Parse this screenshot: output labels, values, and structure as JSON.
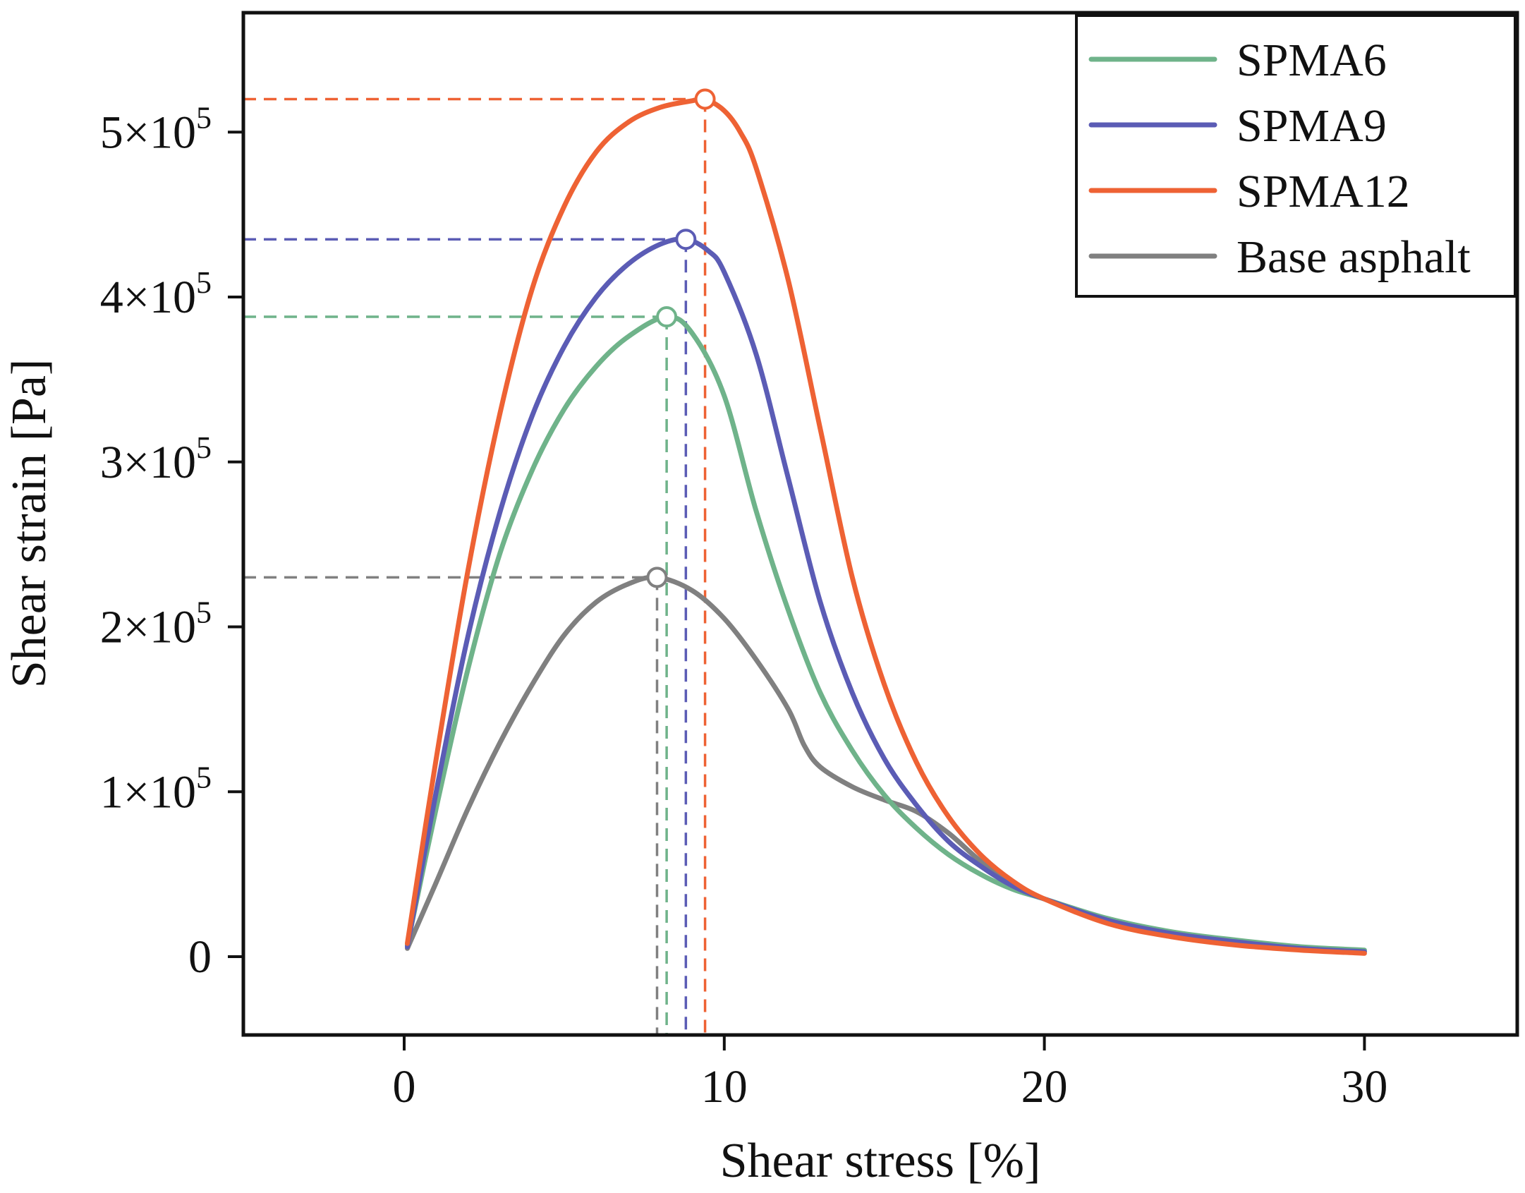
{
  "chart_data": {
    "type": "line",
    "title": "",
    "xlabel": "Shear stress [%]",
    "ylabel": "Shear strain [Pa]",
    "xlim": [
      -5,
      35
    ],
    "ylim": [
      -50000,
      575000
    ],
    "grid": false,
    "legend_position": "top-right",
    "x_ticks": [
      0,
      10,
      20,
      30
    ],
    "x_tick_labels": [
      "0",
      "10",
      "20",
      "30"
    ],
    "y_ticks": [
      0,
      100000,
      200000,
      300000,
      400000,
      500000
    ],
    "y_tick_labels": [
      {
        "coef": "0",
        "exp": ""
      },
      {
        "coef": "1×10",
        "exp": "5"
      },
      {
        "coef": "2×10",
        "exp": "5"
      },
      {
        "coef": "3×10",
        "exp": "5"
      },
      {
        "coef": "4×10",
        "exp": "5"
      },
      {
        "coef": "5×10",
        "exp": "5"
      }
    ],
    "series": [
      {
        "name": "Base asphalt",
        "color": "#808080",
        "peak": {
          "x": 7.9,
          "y": 230000
        },
        "x": [
          0.1,
          1,
          2,
          3,
          4,
          5,
          6,
          7,
          7.9,
          9,
          10,
          11,
          12,
          12.5,
          13,
          14,
          15,
          16,
          17,
          18,
          19,
          20,
          22,
          24,
          26,
          28,
          30
        ],
        "y": [
          5000,
          45000,
          90000,
          130000,
          165000,
          195000,
          215000,
          226000,
          230000,
          222000,
          205000,
          180000,
          150000,
          128000,
          115000,
          103000,
          95000,
          88000,
          75000,
          58000,
          44000,
          35000,
          22000,
          14000,
          9000,
          5000,
          3000
        ]
      },
      {
        "name": "SPMA6",
        "color": "#6FB38A",
        "peak": {
          "x": 8.2,
          "y": 388000
        },
        "x": [
          0.1,
          1,
          2,
          3,
          4,
          5,
          6,
          7,
          8.2,
          9,
          10,
          11,
          12,
          13,
          14,
          15,
          16,
          17,
          18,
          19,
          20,
          22,
          24,
          26,
          28,
          30
        ],
        "y": [
          7000,
          90000,
          175000,
          245000,
          295000,
          332000,
          358000,
          376000,
          388000,
          378000,
          340000,
          270000,
          210000,
          160000,
          125000,
          98000,
          78000,
          62000,
          50000,
          41000,
          35000,
          23000,
          15000,
          10000,
          6000,
          4000
        ]
      },
      {
        "name": "SPMA9",
        "color": "#5B5CB5",
        "peak": {
          "x": 8.8,
          "y": 435000
        },
        "x": [
          0.1,
          1,
          2,
          3,
          4,
          5,
          6,
          7,
          8,
          8.8,
          9.5,
          10,
          11,
          12,
          13,
          14,
          15,
          16,
          17,
          18,
          19,
          20,
          22,
          24,
          26,
          28,
          30
        ],
        "y": [
          6000,
          100000,
          195000,
          270000,
          328000,
          370000,
          400000,
          420000,
          432000,
          435000,
          428000,
          415000,
          365000,
          290000,
          215000,
          160000,
          120000,
          92000,
          70000,
          55000,
          43000,
          35000,
          22000,
          14000,
          9000,
          5000,
          3000
        ]
      },
      {
        "name": "SPMA12",
        "color": "#EE6234",
        "peak": {
          "x": 9.4,
          "y": 520000
        },
        "x": [
          0.1,
          1,
          2,
          3,
          4,
          5,
          6,
          7,
          8,
          9,
          9.4,
          10,
          10.5,
          11,
          12,
          13,
          14,
          15,
          16,
          17,
          18,
          19,
          20,
          22,
          24,
          26,
          28,
          30
        ],
        "y": [
          8000,
          120000,
          235000,
          330000,
          405000,
          455000,
          488000,
          506000,
          515000,
          519000,
          520000,
          513000,
          500000,
          478000,
          410000,
          320000,
          230000,
          165000,
          118000,
          85000,
          62000,
          46000,
          35000,
          20000,
          12000,
          7000,
          4000,
          2000
        ]
      }
    ],
    "legend_order": [
      "SPMA6",
      "SPMA9",
      "SPMA12",
      "Base asphalt"
    ]
  }
}
